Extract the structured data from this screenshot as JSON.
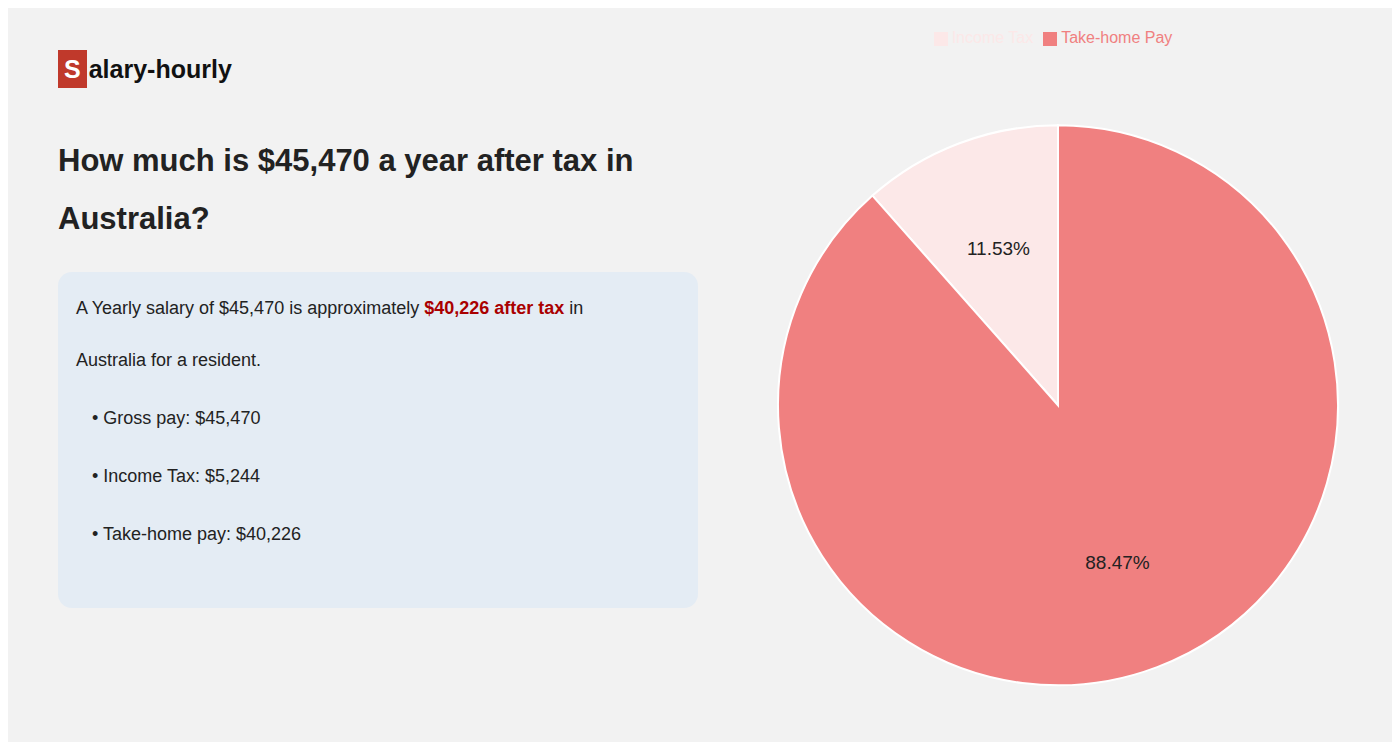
{
  "chart_data": {
    "type": "pie",
    "title": "How much is $45,470 a year after tax in\nAustralia?",
    "annotations": [
      {
        "text": "S",
        "color": "#c0392b"
      },
      "alary-hourly",
      "A Yearly salary of $45,470 is approximately ",
      {
        "text": "$40,226 after tax",
        "color": "#aa0000"
      },
      " in",
      "Australia for a resident.",
      "•  Gross pay: $45,470",
      "•  Income Tax: $5,244",
      "•  Take-home pay: $40,226"
    ],
    "categories": [
      "Income Tax",
      "Take-home Pay"
    ],
    "values": [
      11.53,
      88.47
    ],
    "value_labels": [
      "11.53%",
      "88.47%"
    ],
    "data_labels": true,
    "colors": [
      "#fce8e8",
      "#f08080"
    ],
    "legend": "top"
  }
}
